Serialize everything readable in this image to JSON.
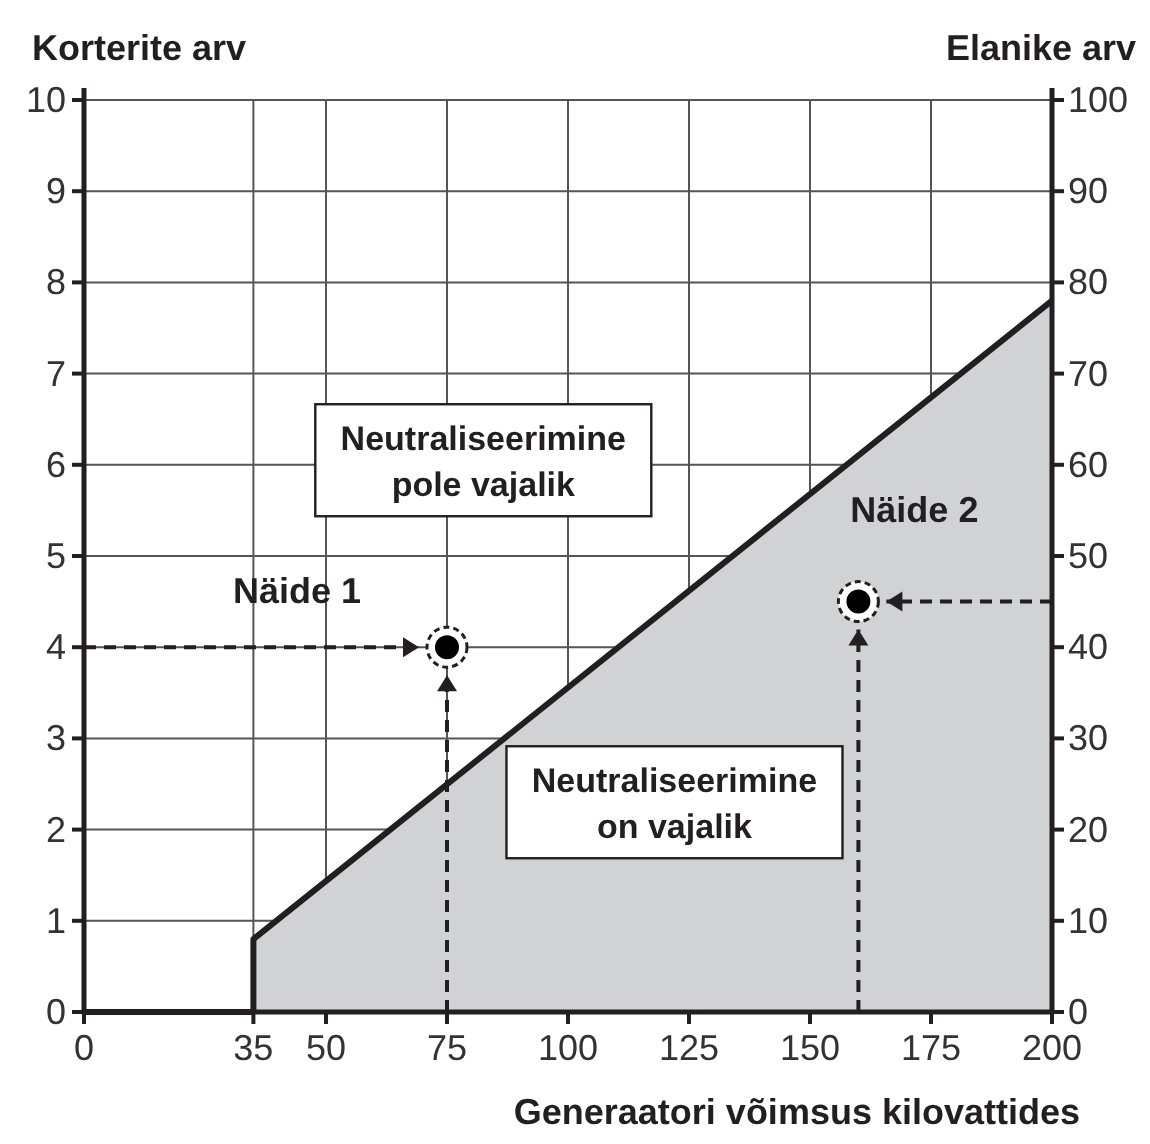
{
  "chart_data": {
    "type": "area",
    "xlabel": "Generaatori võimsus kilovattides",
    "ylabel": "Korterite arv",
    "y2label": "Elanike arv",
    "series": [
      {
        "color": "#d1d2d4",
        "x": [
          0,
          35,
          35,
          200
        ],
        "values": [
          0,
          0,
          0.8,
          7.8
        ]
      },
      {
        "type": "scatter",
        "name": "Näide 1",
        "color": "#000000",
        "marker": "circle",
        "x": [
          75
        ],
        "values": [
          4
        ]
      },
      {
        "type": "scatter",
        "name": "Näide 2",
        "color": "#000000",
        "marker": "circle",
        "x": [
          160
        ],
        "values": [
          4.5
        ]
      }
    ],
    "xlim": [
      0,
      200
    ],
    "xticks": [
      0,
      35,
      50,
      75,
      100,
      125,
      150,
      175,
      200
    ],
    "ylim": [
      0,
      10
    ],
    "yticks": [
      0,
      1,
      2,
      3,
      4,
      5,
      6,
      7,
      8,
      9,
      10
    ],
    "y2lim": [
      0,
      100
    ],
    "y2ticks": [
      0,
      10,
      20,
      30,
      40,
      50,
      60,
      70,
      80,
      90,
      100
    ],
    "annotations": [
      "Neutraliseerimine pole vajalik",
      "Neutraliseerimine on vajalik"
    ],
    "grid": true
  }
}
